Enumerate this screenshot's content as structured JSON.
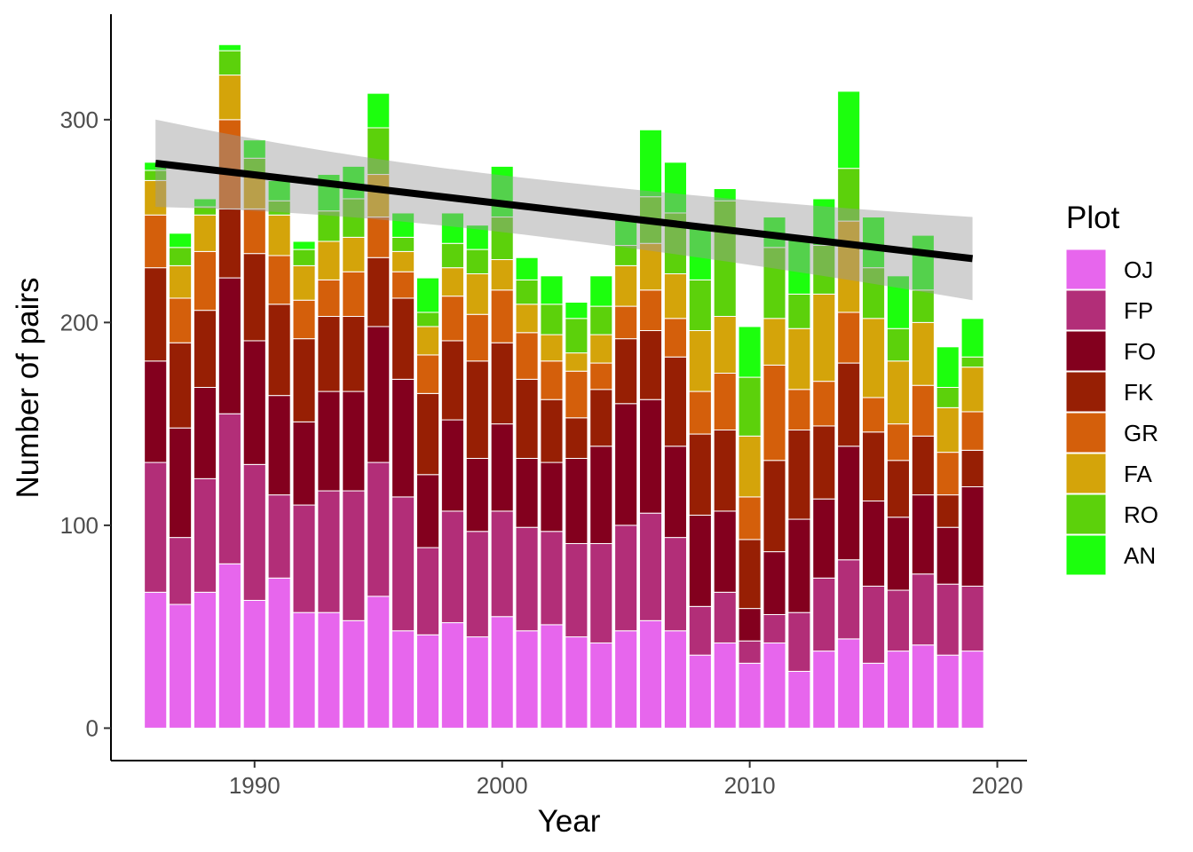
{
  "chart_data": {
    "type": "bar",
    "stacked": true,
    "xlabel": "Year",
    "ylabel": "Number of pairs",
    "x_ticks": [
      1990,
      2000,
      2010,
      2020
    ],
    "y_ticks": [
      0,
      100,
      200,
      300
    ],
    "xlim": [
      1984.2,
      2021.2
    ],
    "ylim": [
      -16,
      352
    ],
    "grid": false,
    "legend": {
      "title": "Plot",
      "position": "right",
      "entries": [
        "OJ",
        "FP",
        "FO",
        "FK",
        "GR",
        "FA",
        "RO",
        "AN"
      ]
    },
    "colors": {
      "OJ": "#e766ed",
      "FP": "#b22e78",
      "FO": "#83001e",
      "FK": "#971f04",
      "GR": "#d45f0b",
      "FA": "#d4a40a",
      "RO": "#5cd10b",
      "AN": "#1cff0d"
    },
    "years": [
      1986,
      1987,
      1988,
      1989,
      1990,
      1991,
      1992,
      1993,
      1994,
      1995,
      1996,
      1997,
      1998,
      1999,
      2000,
      2001,
      2002,
      2003,
      2004,
      2005,
      2006,
      2007,
      2008,
      2009,
      2010,
      2011,
      2012,
      2013,
      2014,
      2015,
      2016,
      2017,
      2018,
      2019
    ],
    "series": [
      {
        "name": "OJ",
        "values": [
          67,
          61,
          67,
          81,
          63,
          74,
          57,
          57,
          53,
          65,
          48,
          46,
          52,
          45,
          55,
          48,
          51,
          45,
          42,
          48,
          53,
          48,
          36,
          42,
          32,
          42,
          28,
          38,
          44,
          32,
          38,
          41,
          36,
          38
        ]
      },
      {
        "name": "FP",
        "values": [
          64,
          33,
          56,
          74,
          67,
          41,
          53,
          60,
          64,
          66,
          66,
          43,
          55,
          52,
          52,
          51,
          46,
          46,
          49,
          52,
          53,
          46,
          24,
          25,
          11,
          14,
          29,
          36,
          39,
          38,
          30,
          35,
          35,
          32
        ]
      },
      {
        "name": "FO",
        "values": [
          50,
          54,
          45,
          67,
          61,
          49,
          41,
          49,
          49,
          67,
          58,
          36,
          45,
          36,
          43,
          34,
          34,
          42,
          48,
          60,
          56,
          45,
          45,
          40,
          16,
          31,
          46,
          39,
          56,
          42,
          36,
          39,
          28,
          49
        ]
      },
      {
        "name": "FK",
        "values": [
          46,
          42,
          38,
          34,
          43,
          45,
          41,
          37,
          37,
          34,
          40,
          40,
          39,
          48,
          40,
          39,
          31,
          20,
          28,
          32,
          34,
          44,
          40,
          40,
          34,
          45,
          44,
          36,
          41,
          34,
          28,
          29,
          16,
          18
        ]
      },
      {
        "name": "GR",
        "values": [
          26,
          22,
          29,
          44,
          22,
          24,
          19,
          18,
          22,
          20,
          13,
          19,
          22,
          23,
          26,
          23,
          19,
          23,
          13,
          16,
          20,
          19,
          21,
          28,
          21,
          47,
          20,
          22,
          25,
          17,
          18,
          25,
          21,
          19
        ]
      },
      {
        "name": "FA",
        "values": [
          17,
          16,
          18,
          22,
          16,
          20,
          17,
          19,
          17,
          21,
          10,
          14,
          14,
          20,
          15,
          14,
          13,
          9,
          14,
          20,
          23,
          22,
          30,
          28,
          30,
          23,
          30,
          43,
          45,
          39,
          31,
          31,
          22,
          22
        ]
      },
      {
        "name": "RO",
        "values": [
          5,
          9,
          4,
          12,
          9,
          7,
          8,
          15,
          19,
          23,
          7,
          7,
          12,
          12,
          21,
          12,
          15,
          17,
          14,
          10,
          23,
          30,
          25,
          57,
          29,
          35,
          17,
          24,
          26,
          25,
          16,
          16,
          10,
          5
        ]
      },
      {
        "name": "AN",
        "values": [
          4,
          7,
          4,
          3,
          9,
          10,
          4,
          18,
          16,
          17,
          12,
          17,
          15,
          12,
          25,
          11,
          14,
          8,
          15,
          13,
          33,
          25,
          27,
          6,
          25,
          15,
          28,
          23,
          38,
          25,
          26,
          27,
          20,
          19
        ]
      }
    ],
    "trend": {
      "type": "linear fit with confidence band",
      "x": [
        1986,
        2019
      ],
      "y": [
        278.5,
        231.5
      ],
      "band_lower": [
        258,
        211
      ],
      "band_upper": [
        300,
        252
      ]
    }
  }
}
